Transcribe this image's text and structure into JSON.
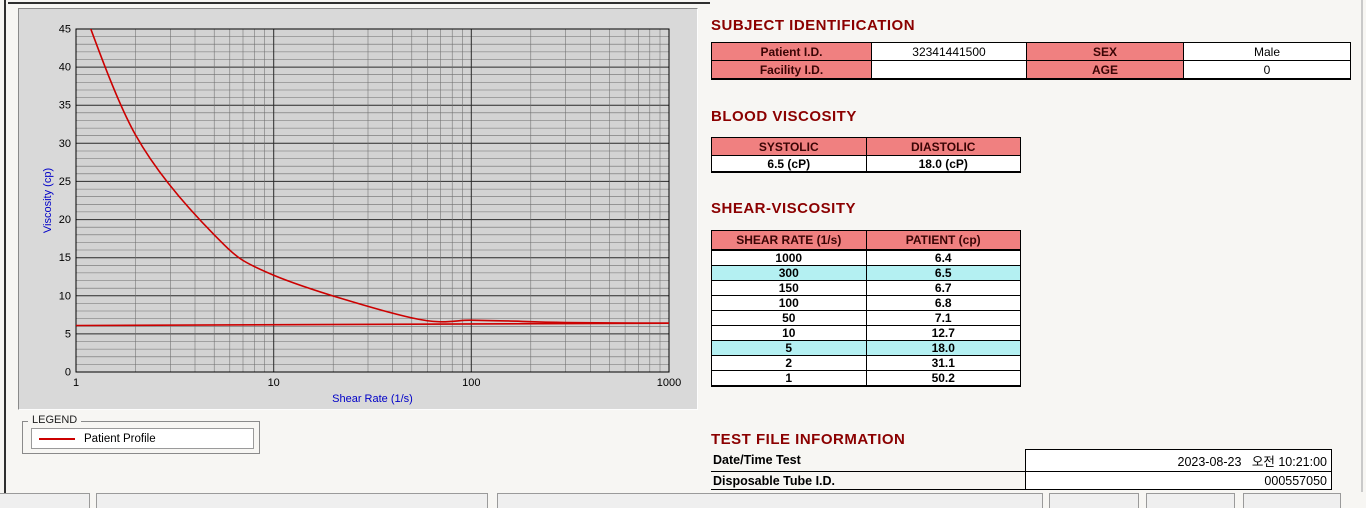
{
  "headings": {
    "subject": "SUBJECT IDENTIFICATION",
    "blood": "BLOOD VISCOSITY",
    "shear": "SHEAR-VISCOSITY",
    "testfile": "TEST FILE INFORMATION"
  },
  "subject_table": {
    "rows": [
      {
        "label1": "Patient I.D.",
        "value1": "32341441500",
        "label2": "SEX",
        "value2": "Male"
      },
      {
        "label1": "Facility I.D.",
        "value1": "",
        "label2": "AGE",
        "value2": "0"
      }
    ]
  },
  "blood_table": {
    "headers": [
      "SYSTOLIC",
      "DIASTOLIC"
    ],
    "values": [
      "6.5 (cP)",
      "18.0 (cP)"
    ]
  },
  "shear_table": {
    "headers": [
      "SHEAR RATE (1/s)",
      "PATIENT (cp)"
    ],
    "rows": [
      {
        "rate": "1000",
        "patient": "6.4",
        "highlight": false
      },
      {
        "rate": "300",
        "patient": "6.5",
        "highlight": true
      },
      {
        "rate": "150",
        "patient": "6.7",
        "highlight": false
      },
      {
        "rate": "100",
        "patient": "6.8",
        "highlight": false
      },
      {
        "rate": "50",
        "patient": "7.1",
        "highlight": false
      },
      {
        "rate": "10",
        "patient": "12.7",
        "highlight": false
      },
      {
        "rate": "5",
        "patient": "18.0",
        "highlight": true
      },
      {
        "rate": "2",
        "patient": "31.1",
        "highlight": false
      },
      {
        "rate": "1",
        "patient": "50.2",
        "highlight": false
      }
    ]
  },
  "testfile_table": {
    "rows": [
      {
        "label": "Date/Time Test",
        "value": "2023-08-23   오전 10:21:00"
      },
      {
        "label": "Disposable Tube I.D.",
        "value": "000557050"
      }
    ]
  },
  "legend": {
    "title": "LEGEND",
    "series_label": "Patient Profile",
    "series_color": "#cc0000"
  },
  "colors": {
    "table_header_bg": "#f08080",
    "row_highlight": "#b4f0f2",
    "heading_text": "#8b0000",
    "series_red": "#cc0000",
    "axis_label_blue": "#0000c8"
  },
  "chart_data": {
    "type": "line",
    "x_scale": "log",
    "title": "",
    "xlabel": "Shear Rate (1/s)",
    "ylabel": "Viscosity (cp)",
    "xlim": [
      1,
      1000
    ],
    "ylim": [
      0,
      45
    ],
    "x_ticks": [
      1,
      10,
      100,
      1000
    ],
    "y_ticks": [
      0,
      5,
      10,
      15,
      20,
      25,
      30,
      35,
      40,
      45
    ],
    "grid": "dense log grid, minor lines every unit (y) and log-minor (x)",
    "legend_position": "below-left",
    "series": [
      {
        "name": "Patient Profile",
        "color": "#cc0000",
        "smooth": true,
        "x": [
          1,
          2,
          5,
          10,
          50,
          100,
          150,
          300,
          1000
        ],
        "y": [
          50.2,
          31.1,
          18.0,
          12.7,
          7.1,
          6.8,
          6.7,
          6.5,
          6.4
        ]
      },
      {
        "name": "Patient Profile baseline",
        "color": "#cc0000",
        "smooth": false,
        "x": [
          1,
          1000
        ],
        "y": [
          6.1,
          6.4
        ]
      }
    ]
  }
}
